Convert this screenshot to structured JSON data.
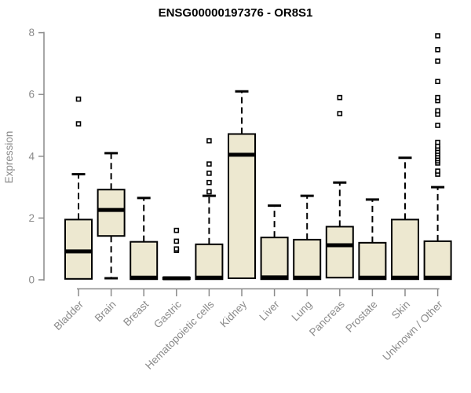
{
  "chart_data": {
    "type": "boxplot",
    "title": "ENSG00000197376 - OR8S1",
    "xlabel": "",
    "ylabel": "Expression",
    "ylim": [
      0,
      8
    ],
    "yticks": [
      0,
      2,
      4,
      6,
      8
    ],
    "grid": false,
    "legend": false,
    "categories": [
      "Bladder",
      "Brain",
      "Breast",
      "Gastric",
      "Hematopoietic cells",
      "Kidney",
      "Liver",
      "Lung",
      "Pancreas",
      "Prostate",
      "Skin",
      "Unknown / Other"
    ],
    "boxes": [
      {
        "category": "Bladder",
        "whisker_low": 0.03,
        "q1": 0.03,
        "median": 0.92,
        "q3": 1.95,
        "whisker_high": 3.42,
        "outliers": [
          5.05,
          5.85
        ]
      },
      {
        "category": "Brain",
        "whisker_low": 0.05,
        "q1": 1.42,
        "median": 2.26,
        "q3": 2.92,
        "whisker_high": 4.1,
        "outliers": []
      },
      {
        "category": "Breast",
        "whisker_low": 0.02,
        "q1": 0.02,
        "median": 0.07,
        "q3": 1.23,
        "whisker_high": 2.65,
        "outliers": []
      },
      {
        "category": "Gastric",
        "whisker_low": 0.02,
        "q1": 0.02,
        "median": 0.05,
        "q3": 0.08,
        "whisker_high": 0.08,
        "outliers": [
          0.95,
          1.0,
          1.25,
          1.6
        ]
      },
      {
        "category": "Hematopoietic cells",
        "whisker_low": 0.02,
        "q1": 0.02,
        "median": 0.07,
        "q3": 1.15,
        "whisker_high": 2.72,
        "outliers": [
          2.85,
          3.15,
          3.45,
          3.75,
          4.5
        ]
      },
      {
        "category": "Kidney",
        "whisker_low": 0.05,
        "q1": 0.05,
        "median": 4.05,
        "q3": 4.72,
        "whisker_high": 6.1,
        "outliers": []
      },
      {
        "category": "Liver",
        "whisker_low": 0.02,
        "q1": 0.02,
        "median": 0.08,
        "q3": 1.37,
        "whisker_high": 2.4,
        "outliers": []
      },
      {
        "category": "Lung",
        "whisker_low": 0.02,
        "q1": 0.02,
        "median": 0.07,
        "q3": 1.3,
        "whisker_high": 2.72,
        "outliers": []
      },
      {
        "category": "Pancreas",
        "whisker_low": 0.07,
        "q1": 0.07,
        "median": 1.12,
        "q3": 1.72,
        "whisker_high": 3.15,
        "outliers": [
          5.38,
          5.9
        ]
      },
      {
        "category": "Prostate",
        "whisker_low": 0.02,
        "q1": 0.02,
        "median": 0.07,
        "q3": 1.2,
        "whisker_high": 2.6,
        "outliers": []
      },
      {
        "category": "Skin",
        "whisker_low": 0.02,
        "q1": 0.02,
        "median": 0.07,
        "q3": 1.95,
        "whisker_high": 3.95,
        "outliers": []
      },
      {
        "category": "Unknown / Other",
        "whisker_low": 0.02,
        "q1": 0.02,
        "median": 0.07,
        "q3": 1.25,
        "whisker_high": 3.0,
        "outliers": [
          3.42,
          3.52,
          3.78,
          3.85,
          3.92,
          4.0,
          4.08,
          4.16,
          4.25,
          4.33,
          4.45,
          5.0,
          5.36,
          5.47,
          5.8,
          5.9,
          6.42,
          7.08,
          7.45,
          7.9
        ]
      }
    ],
    "colors": {
      "box_fill": "#EDE8D0",
      "box_stroke": "#000000",
      "median": "#000000",
      "whisker": "#000000",
      "outlier_stroke": "#000000",
      "outlier_fill": "#ffffff",
      "axis": "#8a8a8a",
      "title": "#000000",
      "background": "#ffffff"
    }
  }
}
